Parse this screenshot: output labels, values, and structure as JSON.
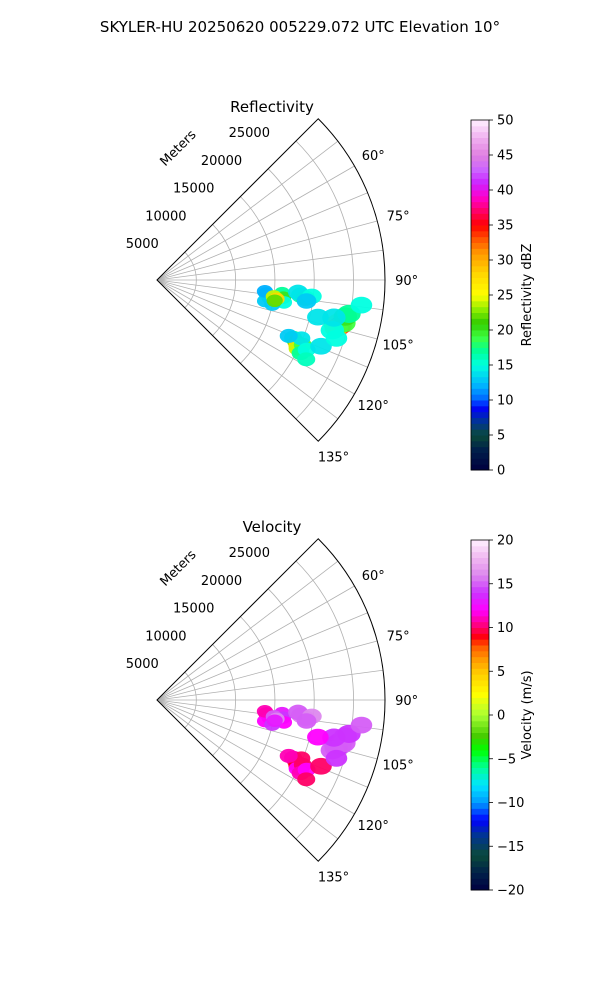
{
  "figure": {
    "title": "SKYLER-HU  20250620  005229.072 UTC Elevation 10°"
  },
  "chart_data": [
    {
      "type": "heatmap",
      "subtype": "polar-sector",
      "title": "Reflectivity",
      "range_label": "Meters",
      "range_ticks": [
        5000,
        10000,
        15000,
        20000,
        25000
      ],
      "range_tick_labels": [
        "5000",
        "10000",
        "15000",
        "20000",
        "25000"
      ],
      "range_max": 29000,
      "azimuth_range": [
        45,
        135
      ],
      "azimuth_ticks": [
        60,
        75,
        90,
        105,
        120,
        135
      ],
      "azimuth_tick_labels": [
        "60°",
        "75°",
        "90°",
        "105°",
        "120°",
        "135°"
      ],
      "grid": true,
      "colorbar": {
        "label": "Reflectivity dBZ",
        "range": [
          0,
          50
        ],
        "ticks": [
          0,
          5,
          10,
          15,
          20,
          25,
          30,
          35,
          40,
          45,
          50
        ],
        "tick_labels": [
          "0",
          "5",
          "10",
          "15",
          "20",
          "25",
          "30",
          "35",
          "40",
          "45",
          "50"
        ],
        "placement": "right"
      },
      "echoes": [
        {
          "cells": [
            [
              97,
              14000,
              14
            ],
            [
              99,
              14500,
              16
            ],
            [
              101,
              14000,
              13
            ],
            [
              96,
              16000,
              17
            ],
            [
              98,
              16200,
              20
            ],
            [
              100,
              16400,
              15
            ],
            [
              96,
              13800,
              12
            ],
            [
              102,
              15000,
              13
            ],
            [
              98,
              15000,
              24
            ],
            [
              99,
              15400,
              28
            ],
            [
              100,
              15200,
              22
            ]
          ]
        },
        {
          "cells": [
            [
              96,
              18400,
              16
            ],
            [
              97,
              19000,
              18
            ],
            [
              95,
              18000,
              14
            ],
            [
              96,
              19800,
              15
            ],
            [
              98,
              19200,
              13
            ]
          ]
        },
        {
          "cells": [
            [
              104,
              23400,
              18
            ],
            [
              103,
              23800,
              26
            ],
            [
              104,
              24000,
              34
            ],
            [
              105,
              23600,
              30
            ],
            [
              103,
              24400,
              19
            ],
            [
              101,
              24400,
              20
            ],
            [
              100,
              24800,
              17
            ],
            [
              106,
              23200,
              15
            ],
            [
              102,
              23000,
              14
            ]
          ]
        },
        {
          "cells": [
            [
              113,
              18800,
              17
            ],
            [
              114,
              19400,
              22
            ],
            [
              115,
              19700,
              28
            ],
            [
              116,
              19900,
              24
            ],
            [
              114,
              20300,
              19
            ],
            [
              117,
              20500,
              17
            ],
            [
              112,
              19800,
              14
            ],
            [
              115,
              21000,
              15
            ],
            [
              118,
              21500,
              16
            ],
            [
              113,
              18200,
              13
            ]
          ]
        },
        {
          "cells": [
            [
              112,
              22500,
              14
            ],
            [
              108,
              24000,
              15
            ],
            [
              97,
              26200,
              15
            ],
            [
              103,
              21000,
              14
            ]
          ]
        }
      ]
    },
    {
      "type": "heatmap",
      "subtype": "polar-sector",
      "title": "Velocity",
      "range_label": "Meters",
      "range_ticks": [
        5000,
        10000,
        15000,
        20000,
        25000
      ],
      "range_tick_labels": [
        "5000",
        "10000",
        "15000",
        "20000",
        "25000"
      ],
      "range_max": 29000,
      "azimuth_range": [
        45,
        135
      ],
      "azimuth_ticks": [
        60,
        75,
        90,
        105,
        120,
        135
      ],
      "azimuth_tick_labels": [
        "60°",
        "75°",
        "90°",
        "105°",
        "120°",
        "135°"
      ],
      "grid": true,
      "colorbar": {
        "label": "Velocity (m/s)",
        "range": [
          -20,
          20
        ],
        "ticks": [
          -20,
          -15,
          -10,
          -5,
          0,
          5,
          10,
          15,
          20
        ],
        "tick_labels": [
          "−20",
          "−15",
          "−10",
          "−5",
          "0",
          "5",
          "10",
          "15",
          "20"
        ],
        "placement": "right"
      },
      "echoes": [
        {
          "cells": [
            [
              97,
              14000,
              10
            ],
            [
              99,
              14500,
              11
            ],
            [
              101,
              14000,
              12
            ],
            [
              96,
              16000,
              13
            ],
            [
              98,
              16200,
              14
            ],
            [
              100,
              16400,
              12
            ],
            [
              96,
              13800,
              11
            ],
            [
              102,
              15000,
              14
            ],
            [
              98,
              15000,
              15
            ],
            [
              99,
              15400,
              16
            ],
            [
              100,
              15200,
              13
            ]
          ]
        },
        {
          "cells": [
            [
              96,
              18400,
              16
            ],
            [
              97,
              19000,
              16
            ],
            [
              95,
              18000,
              15
            ],
            [
              96,
              19800,
              16
            ],
            [
              98,
              19200,
              15
            ]
          ]
        },
        {
          "cells": [
            [
              104,
              23400,
              15
            ],
            [
              103,
              23800,
              14
            ],
            [
              104,
              24000,
              15
            ],
            [
              105,
              23600,
              14
            ],
            [
              103,
              24400,
              15
            ],
            [
              101,
              24400,
              15
            ],
            [
              100,
              24800,
              14
            ],
            [
              106,
              23200,
              15
            ],
            [
              102,
              23000,
              14
            ]
          ]
        },
        {
          "cells": [
            [
              113,
              18800,
              11
            ],
            [
              114,
              19400,
              10
            ],
            [
              115,
              19700,
              9
            ],
            [
              116,
              19900,
              12
            ],
            [
              114,
              20300,
              10
            ],
            [
              117,
              20500,
              11
            ],
            [
              112,
              19800,
              10
            ],
            [
              115,
              21000,
              12
            ],
            [
              118,
              21500,
              10
            ],
            [
              113,
              18200,
              11
            ]
          ]
        },
        {
          "cells": [
            [
              112,
              22500,
              10
            ],
            [
              108,
              24000,
              14
            ],
            [
              97,
              26200,
              15
            ],
            [
              103,
              21000,
              12
            ]
          ]
        }
      ]
    }
  ]
}
